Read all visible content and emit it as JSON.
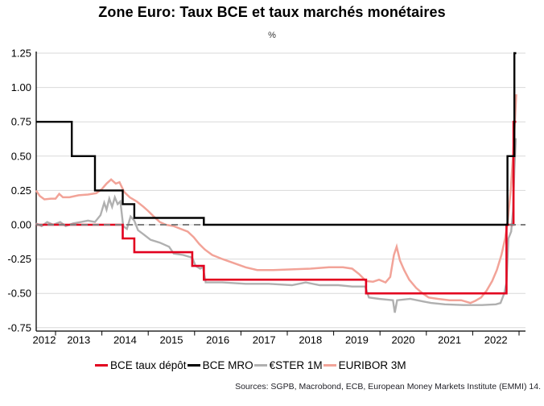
{
  "header": {
    "title": "Zone Euro: Taux BCE et taux marchés monétaires",
    "subtitle": "%"
  },
  "footer": {
    "source": "Sources: SGPB, Macrobond, ECB, European Money Markets Institute (EMMI) 14."
  },
  "colors": {
    "depot_red": "#e2001f",
    "mro_black": "#000000",
    "ester_gray": "#b0b0b0",
    "euribor_salmon": "#f2a398",
    "gridline": "#d9d9d9",
    "zero_dash": "#7f7f7f",
    "axis": "#000000"
  },
  "chart_data": {
    "type": "line",
    "title": "Zone Euro: Taux BCE et taux marchés monétaires",
    "ylabel": "%",
    "ylim": [
      -0.75,
      1.25
    ],
    "x_range_years": [
      2012.58,
      2023.08
    ],
    "grid": true,
    "legend_position": "bottom",
    "y_ticks": [
      {
        "value": 1.25,
        "label": "1.25"
      },
      {
        "value": 1.0,
        "label": "1.00"
      },
      {
        "value": 0.75,
        "label": "0.75"
      },
      {
        "value": 0.5,
        "label": "0.50"
      },
      {
        "value": 0.25,
        "label": "0.25"
      },
      {
        "value": 0.0,
        "label": "0.00"
      },
      {
        "value": -0.25,
        "label": "-0.25"
      },
      {
        "value": -0.5,
        "label": "-0.50"
      },
      {
        "value": -0.75,
        "label": "-0.75"
      }
    ],
    "x_tick_years": [
      2013,
      2014,
      2015,
      2016,
      2017,
      2018,
      2019,
      2020,
      2021,
      2022,
      2023
    ],
    "x_labels": [
      {
        "year": 2012,
        "label": "2012"
      },
      {
        "year": 2013,
        "label": "2013"
      },
      {
        "year": 2014,
        "label": "2014"
      },
      {
        "year": 2015,
        "label": "2015"
      },
      {
        "year": 2016,
        "label": "2016"
      },
      {
        "year": 2017,
        "label": "2017"
      },
      {
        "year": 2018,
        "label": "2018"
      },
      {
        "year": 2019,
        "label": "2019"
      },
      {
        "year": 2020,
        "label": "2020"
      },
      {
        "year": 2021,
        "label": "2021"
      },
      {
        "year": 2022,
        "label": "2022"
      }
    ],
    "zero_line": {
      "value": 0.0,
      "style": "dashed",
      "color": "#7f7f7f",
      "z": 4
    },
    "series": [
      {
        "name": "BCE taux dépôt",
        "color": "#e2001f",
        "width": 2.6,
        "z": 3,
        "points": [
          [
            2012.58,
            0
          ],
          [
            2014.45,
            0
          ],
          [
            2014.45,
            -0.1
          ],
          [
            2014.7,
            -0.1
          ],
          [
            2014.7,
            -0.2
          ],
          [
            2015.95,
            -0.2
          ],
          [
            2015.95,
            -0.3
          ],
          [
            2016.2,
            -0.3
          ],
          [
            2016.2,
            -0.4
          ],
          [
            2019.7,
            -0.4
          ],
          [
            2019.7,
            -0.5
          ],
          [
            2022.73,
            -0.5
          ],
          [
            2022.73,
            0
          ],
          [
            2022.88,
            0
          ],
          [
            2022.88,
            0.75
          ],
          [
            2022.94,
            0.75
          ]
        ]
      },
      {
        "name": "BCE MRO",
        "color": "#000000",
        "width": 2.4,
        "z": 5,
        "points": [
          [
            2012.58,
            0.75
          ],
          [
            2013.35,
            0.75
          ],
          [
            2013.35,
            0.5
          ],
          [
            2013.85,
            0.5
          ],
          [
            2013.85,
            0.25
          ],
          [
            2014.45,
            0.25
          ],
          [
            2014.45,
            0.15
          ],
          [
            2014.7,
            0.15
          ],
          [
            2014.7,
            0.05
          ],
          [
            2016.2,
            0.05
          ],
          [
            2016.2,
            0
          ],
          [
            2022.75,
            0
          ],
          [
            2022.75,
            0.5
          ],
          [
            2022.9,
            0.5
          ],
          [
            2022.9,
            1.25
          ],
          [
            2022.94,
            1.25
          ]
        ]
      },
      {
        "name": "€STER 1M",
        "color": "#b0b0b0",
        "width": 2.4,
        "z": 1,
        "points": [
          [
            2012.58,
            0.01
          ],
          [
            2012.7,
            -0.01
          ],
          [
            2012.82,
            0.02
          ],
          [
            2012.95,
            0
          ],
          [
            2013.1,
            0.02
          ],
          [
            2013.22,
            -0.01
          ],
          [
            2013.38,
            0.01
          ],
          [
            2013.55,
            0.02
          ],
          [
            2013.7,
            0.03
          ],
          [
            2013.85,
            0.02
          ],
          [
            2013.97,
            0.07
          ],
          [
            2014.05,
            0.16
          ],
          [
            2014.1,
            0.11
          ],
          [
            2014.16,
            0.19
          ],
          [
            2014.22,
            0.13
          ],
          [
            2014.28,
            0.2
          ],
          [
            2014.34,
            0.15
          ],
          [
            2014.4,
            0.17
          ],
          [
            2014.46,
            -0.01
          ],
          [
            2014.54,
            -0.03
          ],
          [
            2014.62,
            0.06
          ],
          [
            2014.7,
            0.03
          ],
          [
            2014.78,
            -0.04
          ],
          [
            2014.9,
            -0.07
          ],
          [
            2015.05,
            -0.11
          ],
          [
            2015.25,
            -0.13
          ],
          [
            2015.45,
            -0.16
          ],
          [
            2015.55,
            -0.21
          ],
          [
            2015.75,
            -0.22
          ],
          [
            2015.95,
            -0.24
          ],
          [
            2016.02,
            -0.3
          ],
          [
            2016.12,
            -0.32
          ],
          [
            2016.18,
            -0.31
          ],
          [
            2016.24,
            -0.42
          ],
          [
            2016.6,
            -0.42
          ],
          [
            2017.1,
            -0.43
          ],
          [
            2017.6,
            -0.43
          ],
          [
            2018.1,
            -0.44
          ],
          [
            2018.4,
            -0.42
          ],
          [
            2018.7,
            -0.44
          ],
          [
            2019.1,
            -0.44
          ],
          [
            2019.4,
            -0.45
          ],
          [
            2019.68,
            -0.45
          ],
          [
            2019.76,
            -0.53
          ],
          [
            2019.98,
            -0.54
          ],
          [
            2020.28,
            -0.55
          ],
          [
            2020.32,
            -0.64
          ],
          [
            2020.37,
            -0.55
          ],
          [
            2020.65,
            -0.54
          ],
          [
            2020.95,
            -0.56
          ],
          [
            2021.1,
            -0.57
          ],
          [
            2021.4,
            -0.58
          ],
          [
            2021.8,
            -0.585
          ],
          [
            2022.2,
            -0.585
          ],
          [
            2022.5,
            -0.58
          ],
          [
            2022.6,
            -0.57
          ],
          [
            2022.68,
            -0.5
          ],
          [
            2022.73,
            -0.42
          ],
          [
            2022.77,
            -0.1
          ],
          [
            2022.83,
            -0.05
          ],
          [
            2022.87,
            0.1
          ],
          [
            2022.9,
            0.4
          ],
          [
            2022.93,
            0.63
          ]
        ]
      },
      {
        "name": "EURIBOR 3M",
        "color": "#f2a398",
        "width": 2.5,
        "z": 2,
        "points": [
          [
            2012.58,
            0.25
          ],
          [
            2012.66,
            0.21
          ],
          [
            2012.76,
            0.185
          ],
          [
            2012.9,
            0.19
          ],
          [
            2013.0,
            0.19
          ],
          [
            2013.08,
            0.225
          ],
          [
            2013.16,
            0.2
          ],
          [
            2013.3,
            0.2
          ],
          [
            2013.5,
            0.215
          ],
          [
            2013.7,
            0.22
          ],
          [
            2013.88,
            0.23
          ],
          [
            2014.0,
            0.26
          ],
          [
            2014.1,
            0.3
          ],
          [
            2014.2,
            0.33
          ],
          [
            2014.3,
            0.3
          ],
          [
            2014.38,
            0.31
          ],
          [
            2014.48,
            0.24
          ],
          [
            2014.6,
            0.2
          ],
          [
            2014.75,
            0.17
          ],
          [
            2014.9,
            0.13
          ],
          [
            2015.0,
            0.1
          ],
          [
            2015.12,
            0.06
          ],
          [
            2015.25,
            0.02
          ],
          [
            2015.38,
            0
          ],
          [
            2015.55,
            -0.01
          ],
          [
            2015.7,
            -0.03
          ],
          [
            2015.85,
            -0.05
          ],
          [
            2015.98,
            -0.09
          ],
          [
            2016.1,
            -0.14
          ],
          [
            2016.22,
            -0.18
          ],
          [
            2016.38,
            -0.22
          ],
          [
            2016.6,
            -0.25
          ],
          [
            2016.85,
            -0.28
          ],
          [
            2017.1,
            -0.31
          ],
          [
            2017.35,
            -0.33
          ],
          [
            2017.7,
            -0.33
          ],
          [
            2018.1,
            -0.325
          ],
          [
            2018.5,
            -0.32
          ],
          [
            2018.9,
            -0.31
          ],
          [
            2019.2,
            -0.31
          ],
          [
            2019.4,
            -0.32
          ],
          [
            2019.55,
            -0.36
          ],
          [
            2019.7,
            -0.41
          ],
          [
            2019.85,
            -0.415
          ],
          [
            2019.98,
            -0.4
          ],
          [
            2020.12,
            -0.42
          ],
          [
            2020.22,
            -0.38
          ],
          [
            2020.3,
            -0.22
          ],
          [
            2020.36,
            -0.16
          ],
          [
            2020.43,
            -0.26
          ],
          [
            2020.52,
            -0.33
          ],
          [
            2020.63,
            -0.4
          ],
          [
            2020.78,
            -0.46
          ],
          [
            2020.92,
            -0.5
          ],
          [
            2021.05,
            -0.53
          ],
          [
            2021.25,
            -0.54
          ],
          [
            2021.5,
            -0.55
          ],
          [
            2021.75,
            -0.55
          ],
          [
            2021.95,
            -0.57
          ],
          [
            2022.05,
            -0.555
          ],
          [
            2022.18,
            -0.53
          ],
          [
            2022.3,
            -0.48
          ],
          [
            2022.42,
            -0.41
          ],
          [
            2022.52,
            -0.33
          ],
          [
            2022.62,
            -0.22
          ],
          [
            2022.7,
            -0.1
          ],
          [
            2022.76,
            0.04
          ],
          [
            2022.82,
            0.25
          ],
          [
            2022.87,
            0.5
          ],
          [
            2022.91,
            0.75
          ],
          [
            2022.94,
            0.95
          ]
        ]
      }
    ]
  },
  "legend": {
    "items": [
      {
        "label": "BCE taux dépôt",
        "color": "#e2001f"
      },
      {
        "label": "BCE MRO",
        "color": "#000000"
      },
      {
        "label": "€STER 1M",
        "color": "#b0b0b0"
      },
      {
        "label": "EURIBOR 3M",
        "color": "#f2a398"
      }
    ]
  }
}
